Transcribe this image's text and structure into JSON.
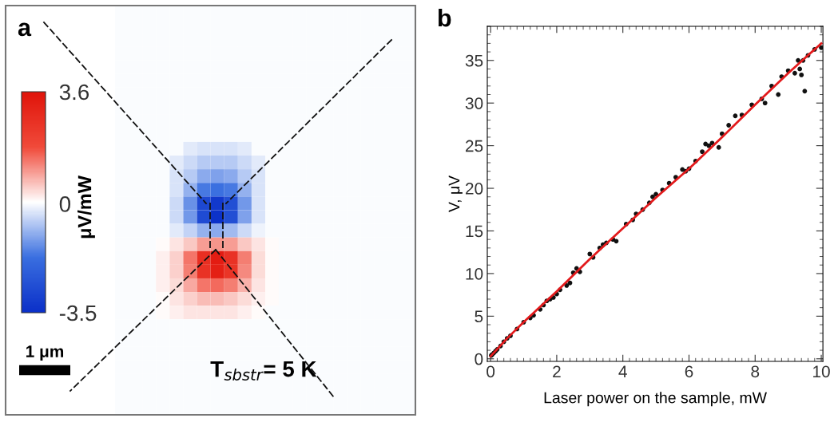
{
  "chart_data": [
    {
      "type": "heatmap",
      "title": "a",
      "clabel": "μV/mW",
      "clim": [
        -3.5,
        3.6
      ],
      "cticks": [
        -3.5,
        0,
        3.6
      ],
      "tick_labels": false,
      "annotations": [
        "1 μm",
        "T$_{sbstr}$= 5 K"
      ],
      "categories": [
        null,
        null,
        null,
        null,
        null,
        null,
        null,
        null,
        null,
        null,
        null,
        null,
        null,
        null,
        null,
        null,
        null,
        null,
        null,
        null,
        null,
        null
      ],
      "y_categories": [
        null,
        null,
        null,
        null,
        null,
        null,
        null,
        null,
        null,
        null,
        null,
        null,
        null,
        null,
        null,
        null,
        null,
        null,
        null,
        null,
        null,
        null,
        null,
        null,
        null,
        null,
        null,
        null,
        null,
        null
      ],
      "cells": [
        [
          0,
          0,
          0,
          0,
          0,
          0,
          0,
          0,
          0,
          0,
          0,
          0,
          0,
          0,
          0,
          0,
          0,
          0,
          0,
          0,
          0,
          0
        ],
        [
          0,
          0,
          0,
          0,
          0,
          0,
          0,
          0,
          0,
          0,
          0,
          0,
          0,
          0,
          0,
          0,
          0,
          0,
          0,
          0,
          0,
          0
        ],
        [
          0,
          0,
          0,
          0,
          0,
          0,
          0,
          0,
          0,
          0,
          0,
          0,
          0,
          0,
          0,
          0,
          0,
          0,
          0,
          0,
          0,
          0
        ],
        [
          0,
          0,
          0,
          0,
          0,
          0,
          0,
          0,
          0,
          0,
          0,
          0,
          0,
          0,
          0,
          0,
          0,
          0,
          0,
          0,
          0,
          0
        ],
        [
          0,
          0,
          0,
          0,
          0,
          0,
          0,
          0,
          0,
          0,
          0,
          0,
          0,
          0,
          0,
          0,
          0,
          0,
          0,
          0,
          0,
          0
        ],
        [
          0,
          0,
          0,
          0,
          0,
          0,
          0,
          0,
          0,
          0,
          0,
          0,
          0,
          0,
          0,
          0,
          0,
          0,
          0,
          0,
          0,
          0
        ],
        [
          0,
          0,
          0,
          0,
          0,
          0,
          0,
          0,
          0,
          0,
          0,
          0,
          0,
          0,
          0,
          0,
          0,
          0,
          0,
          0,
          0,
          0
        ],
        [
          0,
          0,
          0,
          0,
          0,
          0,
          0,
          0,
          0,
          0,
          0,
          0,
          0,
          0,
          0,
          0,
          0,
          0,
          0,
          0,
          0,
          0
        ],
        [
          0,
          0,
          0,
          0,
          0,
          0,
          0,
          0,
          0,
          0,
          0,
          0,
          0,
          0,
          0,
          0,
          0,
          0,
          0,
          0,
          0,
          0
        ],
        [
          0,
          0,
          0,
          0,
          0,
          0,
          0,
          0,
          0,
          0,
          0,
          0,
          0,
          0,
          0,
          0,
          0,
          0,
          0,
          0,
          0,
          0
        ],
        [
          0,
          0,
          0,
          0,
          0,
          -0.2,
          -0.3,
          -0.3,
          -0.3,
          -0.2,
          0,
          0,
          0,
          0,
          0,
          0,
          0,
          0,
          0,
          0,
          0,
          0
        ],
        [
          0,
          0,
          0,
          0,
          -0.2,
          -0.4,
          -0.6,
          -0.6,
          -0.6,
          -0.4,
          -0.2,
          0,
          0,
          0,
          0,
          0,
          0,
          0,
          0,
          0,
          0,
          0
        ],
        [
          0,
          0,
          0,
          0,
          -0.3,
          -0.6,
          -1.0,
          -1.1,
          -1.0,
          -0.6,
          -0.3,
          0,
          0,
          0,
          0,
          0,
          0,
          0,
          0,
          0,
          0,
          0
        ],
        [
          0,
          0,
          0,
          0,
          -0.3,
          -0.9,
          -1.6,
          -1.7,
          -1.6,
          -0.9,
          -0.3,
          0,
          0,
          0,
          0,
          0,
          0,
          0,
          0,
          0,
          0,
          0
        ],
        [
          0,
          0,
          0,
          0,
          -0.4,
          -1.3,
          -2.8,
          -3.2,
          -2.6,
          -1.2,
          -0.3,
          0,
          0,
          0,
          0,
          0,
          0,
          0,
          0,
          0,
          0,
          0
        ],
        [
          0,
          0,
          0,
          0,
          -0.4,
          -1.2,
          -2.7,
          -3.4,
          -2.6,
          -1.1,
          -0.3,
          0,
          0,
          0,
          0,
          0,
          0,
          0,
          0,
          0,
          0,
          0
        ],
        [
          0,
          0,
          0,
          0,
          -0.2,
          -0.5,
          -0.9,
          -1.0,
          -0.8,
          -0.4,
          -0.1,
          0,
          0,
          0,
          0,
          0,
          0,
          0,
          0,
          0,
          0,
          0
        ],
        [
          0,
          0,
          0,
          0.1,
          0.3,
          0.6,
          1.0,
          1.1,
          1.0,
          0.6,
          0.3,
          0.1,
          0,
          0,
          0,
          0,
          0,
          0,
          0,
          0,
          0,
          0
        ],
        [
          0,
          0,
          0,
          0.2,
          0.5,
          1.4,
          2.7,
          3.3,
          2.6,
          1.3,
          0.4,
          0.1,
          0,
          0,
          0,
          0,
          0,
          0,
          0,
          0,
          0,
          0
        ],
        [
          0,
          0,
          0,
          0.2,
          0.5,
          1.3,
          2.6,
          3.2,
          2.5,
          1.2,
          0.4,
          0.1,
          0,
          0,
          0,
          0,
          0,
          0,
          0,
          0,
          0,
          0
        ],
        [
          0,
          0,
          0,
          0.2,
          0.4,
          0.9,
          1.4,
          1.5,
          1.3,
          0.8,
          0.3,
          0.1,
          0,
          0,
          0,
          0,
          0,
          0,
          0,
          0,
          0,
          0
        ],
        [
          0,
          0,
          0,
          0.1,
          0.3,
          0.5,
          0.7,
          0.7,
          0.6,
          0.4,
          0.2,
          0.1,
          0,
          0,
          0,
          0,
          0,
          0,
          0,
          0,
          0,
          0
        ],
        [
          0,
          0,
          0,
          0.1,
          0.2,
          0.3,
          0.3,
          0.3,
          0.3,
          0.2,
          0.1,
          0,
          0,
          0,
          0,
          0,
          0,
          0,
          0,
          0,
          0,
          0
        ],
        [
          0,
          0,
          0,
          0,
          0,
          0,
          0,
          0,
          0,
          0,
          0,
          0,
          0,
          0,
          0,
          0,
          0,
          0,
          0,
          0,
          0,
          0
        ],
        [
          0,
          0,
          0,
          0,
          0,
          0,
          0,
          0,
          0,
          0,
          0,
          0,
          0,
          0,
          0,
          0,
          0,
          0,
          0,
          0,
          0,
          0
        ],
        [
          0,
          0,
          0,
          0,
          0,
          0,
          0,
          0,
          0,
          0,
          0,
          0,
          0,
          0,
          0,
          0,
          0,
          0,
          0,
          0,
          0,
          0
        ],
        [
          0,
          0,
          0,
          0,
          0,
          0,
          0,
          0,
          0,
          0,
          0,
          0,
          0,
          0,
          0,
          0,
          0,
          0,
          0,
          0,
          0,
          0
        ],
        [
          0,
          0,
          0,
          0,
          0,
          0,
          0,
          0,
          0,
          0,
          0,
          0,
          0,
          0,
          0,
          0,
          0,
          0,
          0,
          0,
          0,
          0
        ],
        [
          0,
          0,
          0,
          0,
          0,
          0,
          0,
          0,
          0,
          0,
          0,
          0,
          0,
          0,
          0,
          0,
          0,
          0,
          0,
          0,
          0,
          0
        ],
        [
          0,
          0,
          0,
          0,
          0,
          0,
          0,
          0,
          0,
          0,
          0,
          0,
          0,
          0,
          0,
          0,
          0,
          0,
          0,
          0,
          0,
          0
        ]
      ]
    },
    {
      "type": "scatter",
      "title": "b",
      "xlabel": "Laser power on the sample, mW",
      "ylabel": "V, μV",
      "xlim": [
        -0.1,
        10.05
      ],
      "ylim": [
        -0.3,
        39
      ],
      "xticks": [
        0,
        2,
        4,
        6,
        8,
        10
      ],
      "yticks": [
        0,
        5,
        10,
        15,
        20,
        25,
        30,
        35
      ],
      "grid": false,
      "series": [
        {
          "type": "scatter",
          "color": "#111111",
          "marker": "circle",
          "x": [
            0.02,
            0.05,
            0.1,
            0.15,
            0.2,
            0.3,
            0.4,
            0.5,
            0.6,
            0.8,
            1.0,
            1.2,
            1.3,
            1.5,
            1.6,
            1.7,
            1.8,
            1.9,
            2.0,
            2.1,
            2.3,
            2.4,
            2.5,
            2.6,
            2.7,
            3.0,
            3.1,
            3.3,
            3.4,
            3.5,
            3.7,
            3.8,
            4.1,
            4.3,
            4.4,
            4.6,
            4.8,
            4.9,
            5.0,
            5.2,
            5.4,
            5.6,
            5.8,
            5.9,
            6.0,
            6.2,
            6.4,
            6.5,
            6.6,
            6.7,
            6.9,
            7.0,
            7.2,
            7.4,
            7.6,
            7.9,
            8.2,
            8.3,
            8.5,
            8.7,
            8.8,
            9.0,
            9.2,
            9.3,
            9.35,
            9.4,
            9.45,
            9.5,
            9.6,
            9.8,
            10.0
          ],
          "values": [
            0.4,
            0.5,
            0.7,
            0.9,
            1.1,
            1.5,
            2.0,
            2.4,
            2.7,
            3.5,
            4.3,
            4.8,
            5.1,
            5.8,
            6.3,
            6.8,
            7.0,
            7.2,
            7.6,
            8.1,
            8.6,
            8.9,
            10.1,
            10.6,
            10.2,
            12.3,
            11.9,
            13.0,
            13.4,
            13.6,
            14.0,
            13.8,
            15.8,
            16.3,
            17.0,
            17.5,
            18.3,
            19.0,
            19.3,
            19.8,
            20.6,
            21.3,
            22.2,
            22.0,
            22.3,
            23.2,
            24.3,
            25.2,
            25.0,
            25.3,
            24.8,
            26.4,
            27.4,
            28.5,
            28.6,
            29.8,
            30.5,
            30.0,
            32.0,
            31.0,
            33.1,
            33.8,
            33.5,
            35.0,
            34.0,
            33.3,
            35.0,
            31.4,
            35.6,
            36.3,
            36.5
          ]
        },
        {
          "type": "line",
          "color": "#e31a1c",
          "x": [
            0,
            0.5,
            1,
            2,
            3,
            4,
            5,
            6,
            7,
            8,
            9,
            10
          ],
          "values": [
            0.3,
            2.4,
            4.3,
            7.9,
            11.7,
            15.3,
            18.9,
            22.3,
            26.0,
            29.8,
            33.5,
            37.0
          ]
        }
      ]
    }
  ]
}
